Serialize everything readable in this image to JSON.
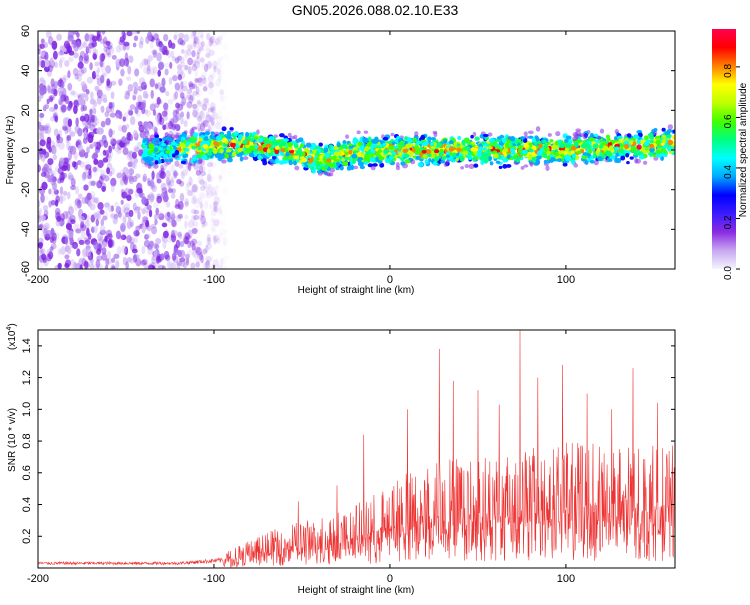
{
  "title": "GN05.2026.088.02.10.E33",
  "chart_data": [
    {
      "type": "heatmap",
      "name": "spectrogram",
      "xlabel": "Height of straight line (km)",
      "ylabel": "Frequency (Hz)",
      "xlim": [
        -200,
        162
      ],
      "ylim": [
        -60,
        60
      ],
      "xticks": [
        -200,
        -100,
        0,
        100
      ],
      "yticks": [
        -60,
        -40,
        -20,
        0,
        20,
        40,
        60
      ],
      "colorbar": {
        "label": "Normalized spectral amplitude",
        "range": [
          0,
          0.95
        ],
        "ticks": [
          "0.0",
          "0.2",
          "0.4",
          "0.6",
          "0.8"
        ],
        "tick_values": [
          0,
          0.2,
          0.4,
          0.6,
          0.8
        ],
        "colormap": [
          "#f4f4ff",
          "#c8a8f0",
          "#8a2be2",
          "#3a1cff",
          "#0000ff",
          "#00a8ff",
          "#00ffff",
          "#00ff80",
          "#40ff00",
          "#c0ff00",
          "#ffff00",
          "#ff8000",
          "#ff0000",
          "#ff0050"
        ]
      },
      "description_ranges": {
        "noise_x": [
          -200,
          -92
        ],
        "signal_x": [
          -140,
          162
        ],
        "signal_center_hz": [
          [
            -140,
            0
          ],
          [
            -80,
            3
          ],
          [
            -60,
            0
          ],
          [
            -40,
            -5
          ],
          [
            -20,
            -1
          ],
          [
            0,
            0
          ],
          [
            40,
            0
          ],
          [
            80,
            0
          ],
          [
            120,
            1
          ],
          [
            162,
            3
          ]
        ],
        "signal_halfwidth_hz": 8
      }
    },
    {
      "type": "line",
      "name": "snr",
      "color": "#ee3333",
      "xlabel": "Height of straight line (km)",
      "ylabel": "SNR (10 * v/v)",
      "multiplier_label": "(x10",
      "multiplier_exp": "4",
      "multiplier_close": ")",
      "xlim": [
        -200,
        162
      ],
      "ylim": [
        0,
        1.5
      ],
      "xticks": [
        -200,
        -100,
        0,
        100
      ],
      "yticks": [
        "0.2",
        "0.4",
        "0.6",
        "0.8",
        "1.0",
        "1.2",
        "1.4"
      ],
      "ytick_values": [
        0.2,
        0.4,
        0.6,
        0.8,
        1.0,
        1.2,
        1.4
      ],
      "envelope": [
        [
          -200,
          0.03
        ],
        [
          -120,
          0.03
        ],
        [
          -95,
          0.05
        ],
        [
          -80,
          0.1
        ],
        [
          -60,
          0.15
        ],
        [
          -40,
          0.18
        ],
        [
          -20,
          0.22
        ],
        [
          0,
          0.3
        ],
        [
          20,
          0.38
        ],
        [
          50,
          0.4
        ],
        [
          80,
          0.42
        ],
        [
          110,
          0.45
        ],
        [
          140,
          0.42
        ],
        [
          162,
          0.45
        ]
      ],
      "peaks": [
        [
          -52,
          0.42
        ],
        [
          -30,
          0.52
        ],
        [
          -15,
          0.84
        ],
        [
          10,
          1.0
        ],
        [
          28,
          1.38
        ],
        [
          36,
          1.18
        ],
        [
          50,
          1.12
        ],
        [
          62,
          1.03
        ],
        [
          74,
          1.5
        ],
        [
          84,
          1.2
        ],
        [
          98,
          1.28
        ],
        [
          112,
          1.1
        ],
        [
          126,
          1.0
        ],
        [
          138,
          1.26
        ],
        [
          152,
          1.04
        ]
      ]
    }
  ]
}
